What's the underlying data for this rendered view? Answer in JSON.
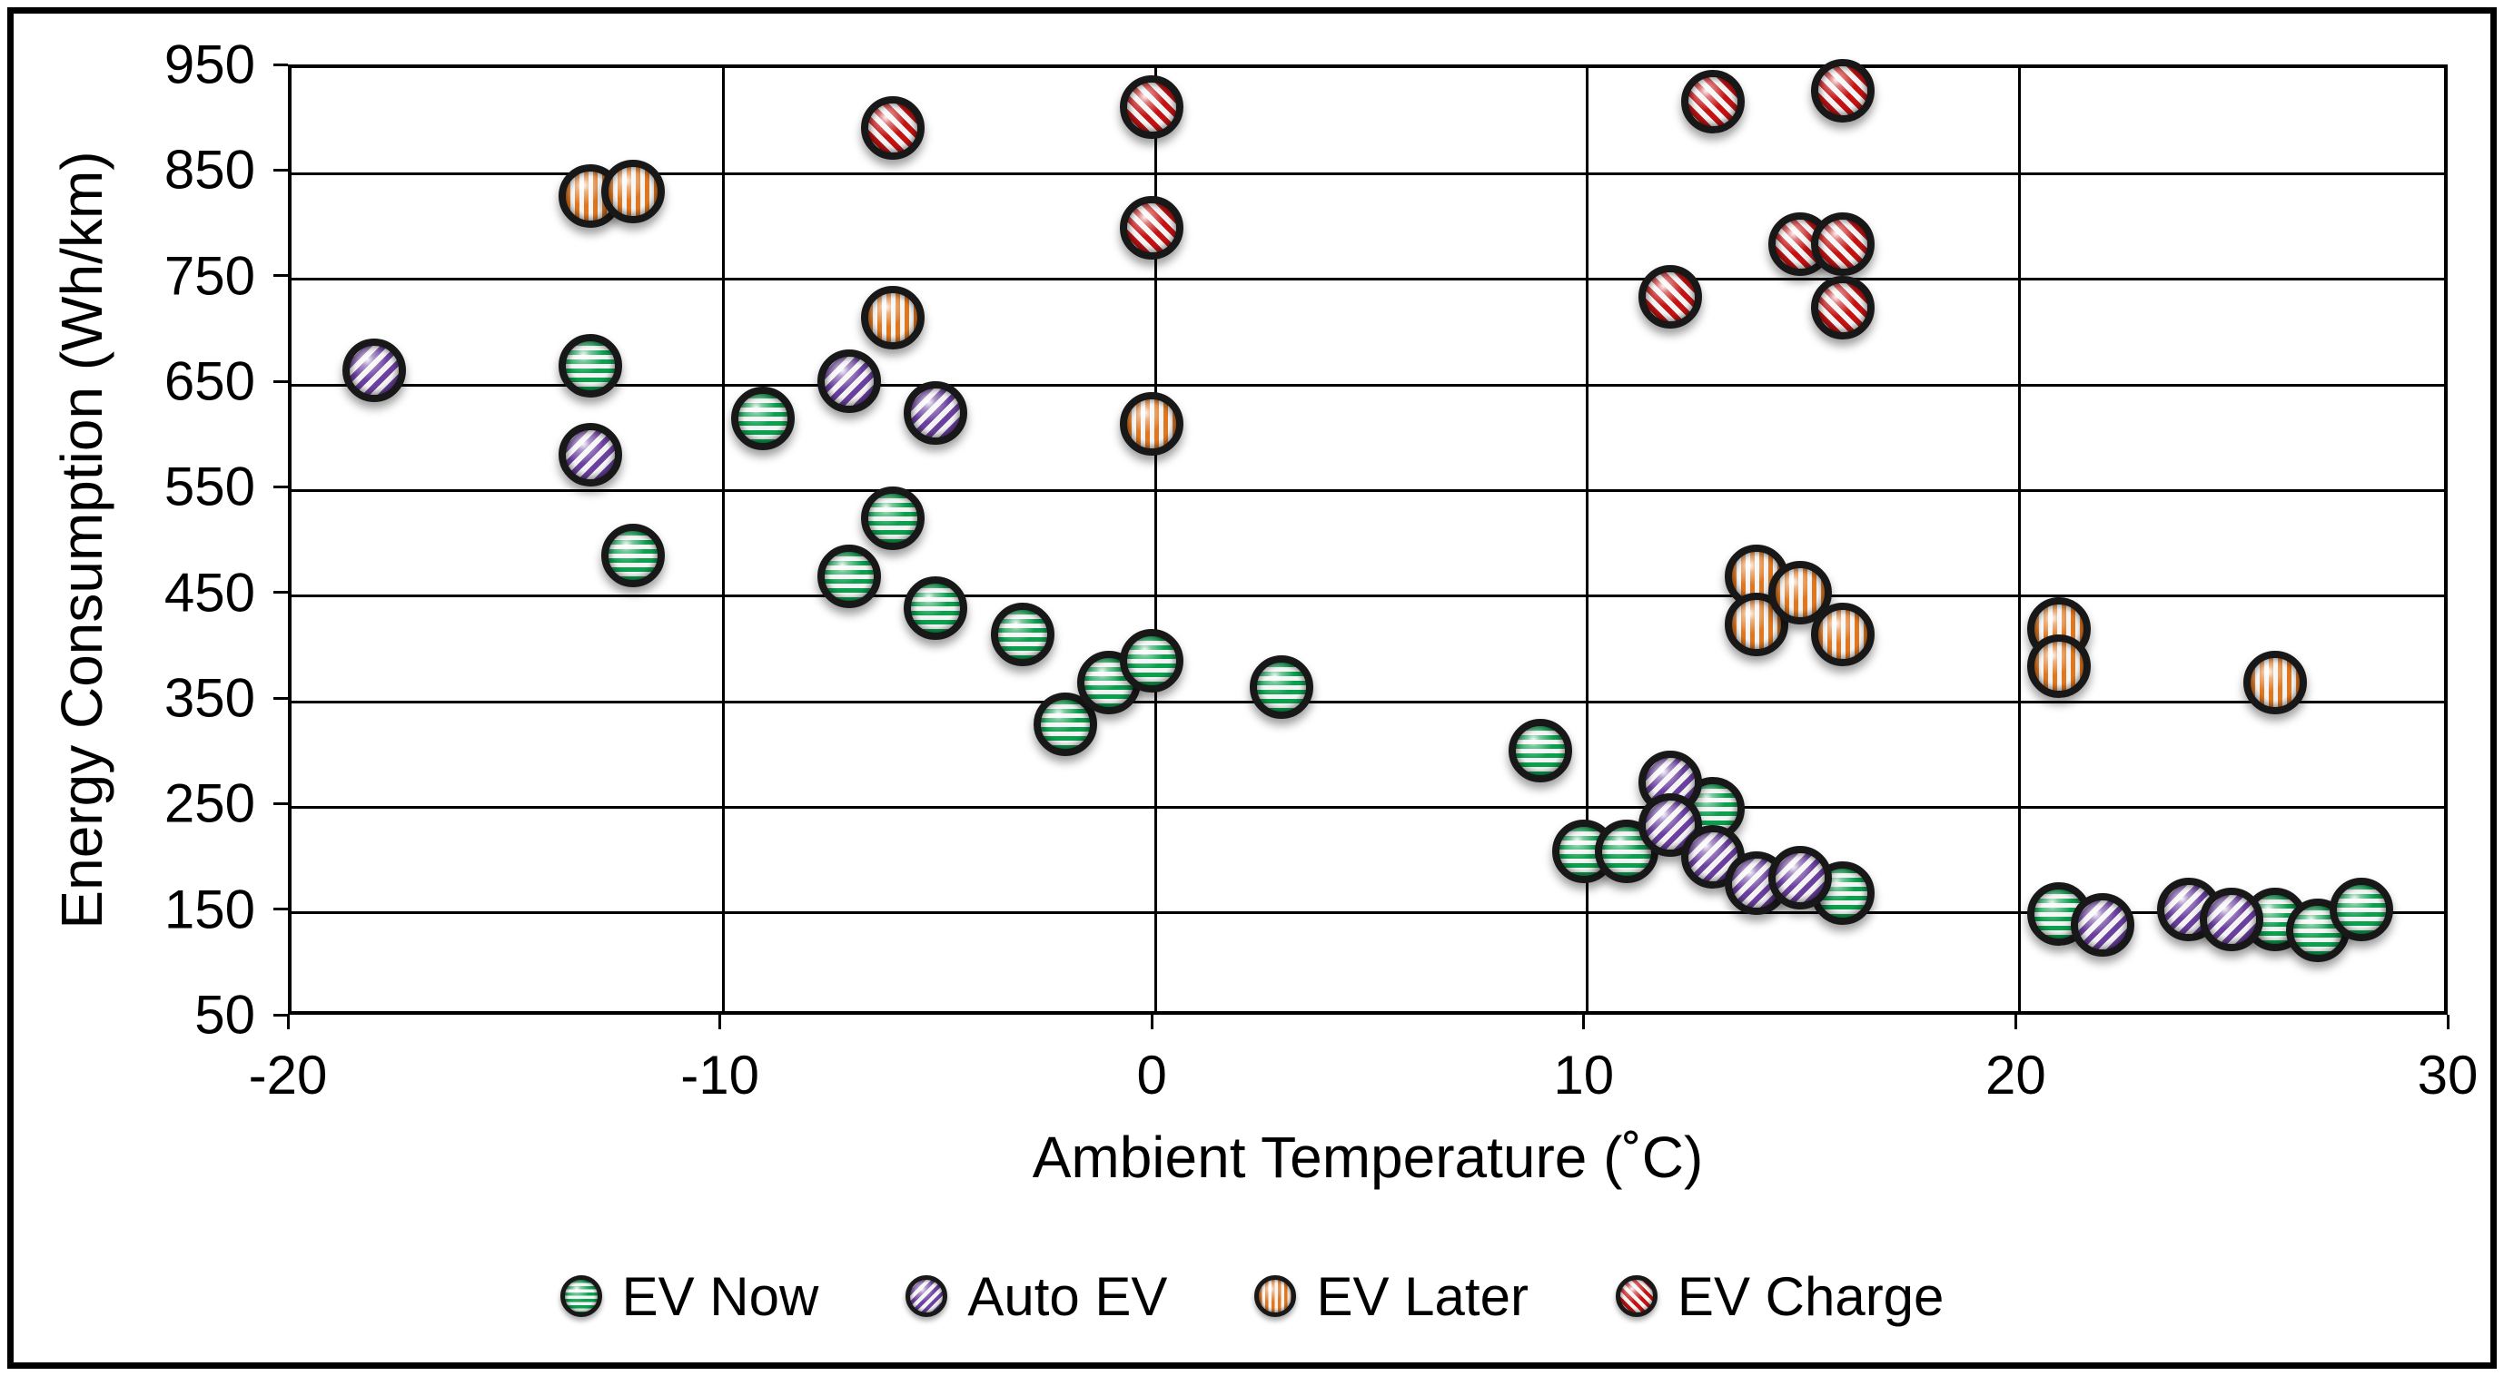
{
  "chart_data": {
    "type": "scatter",
    "title": "",
    "xlabel": "Ambient Temperature (˚C)",
    "ylabel": "Energy Consumption (Wh/km)",
    "xlim": [
      -20,
      30
    ],
    "ylim": [
      50,
      950
    ],
    "x_ticks": [
      -20,
      -10,
      0,
      10,
      20,
      30
    ],
    "y_ticks": [
      950,
      850,
      750,
      650,
      550,
      450,
      350,
      250,
      150,
      50
    ],
    "grid": true,
    "legend_position": "bottom",
    "marker_style": "glossy striped sphere with dark ring",
    "series": [
      {
        "name": "EV Now",
        "color": "#0aa04e",
        "pattern": "horizontal",
        "points": [
          [
            -13,
            665
          ],
          [
            -12,
            485
          ],
          [
            -9,
            615
          ],
          [
            -7,
            465
          ],
          [
            -6,
            520
          ],
          [
            -5,
            435
          ],
          [
            -3,
            410
          ],
          [
            -2,
            325
          ],
          [
            -1,
            365
          ],
          [
            0,
            385
          ],
          [
            3,
            360
          ],
          [
            9,
            300
          ],
          [
            10,
            205
          ],
          [
            11,
            205
          ],
          [
            13,
            245
          ],
          [
            16,
            165
          ],
          [
            21,
            145
          ],
          [
            26,
            140
          ],
          [
            27,
            130
          ],
          [
            28,
            150
          ]
        ]
      },
      {
        "name": "Auto EV",
        "color": "#6b3fa0",
        "pattern": "diagonal-up",
        "points": [
          [
            -18,
            660
          ],
          [
            -13,
            580
          ],
          [
            -7,
            650
          ],
          [
            -5,
            620
          ],
          [
            12,
            270
          ],
          [
            12,
            230
          ],
          [
            13,
            200
          ],
          [
            14,
            175
          ],
          [
            15,
            180
          ],
          [
            22,
            135
          ],
          [
            24,
            150
          ],
          [
            25,
            140
          ]
        ]
      },
      {
        "name": "EV Later",
        "color": "#e0771f",
        "pattern": "vertical",
        "points": [
          [
            -13,
            825
          ],
          [
            -12,
            830
          ],
          [
            -6,
            710
          ],
          [
            0,
            610
          ],
          [
            14,
            465
          ],
          [
            14,
            420
          ],
          [
            15,
            450
          ],
          [
            16,
            410
          ],
          [
            21,
            415
          ],
          [
            21,
            380
          ],
          [
            26,
            365
          ]
        ]
      },
      {
        "name": "EV Charge",
        "color": "#c41212",
        "pattern": "diagonal-down",
        "points": [
          [
            -6,
            890
          ],
          [
            0,
            910
          ],
          [
            0,
            795
          ],
          [
            12,
            730
          ],
          [
            13,
            915
          ],
          [
            15,
            780
          ],
          [
            16,
            780
          ],
          [
            16,
            720
          ],
          [
            16,
            925
          ]
        ]
      }
    ]
  }
}
